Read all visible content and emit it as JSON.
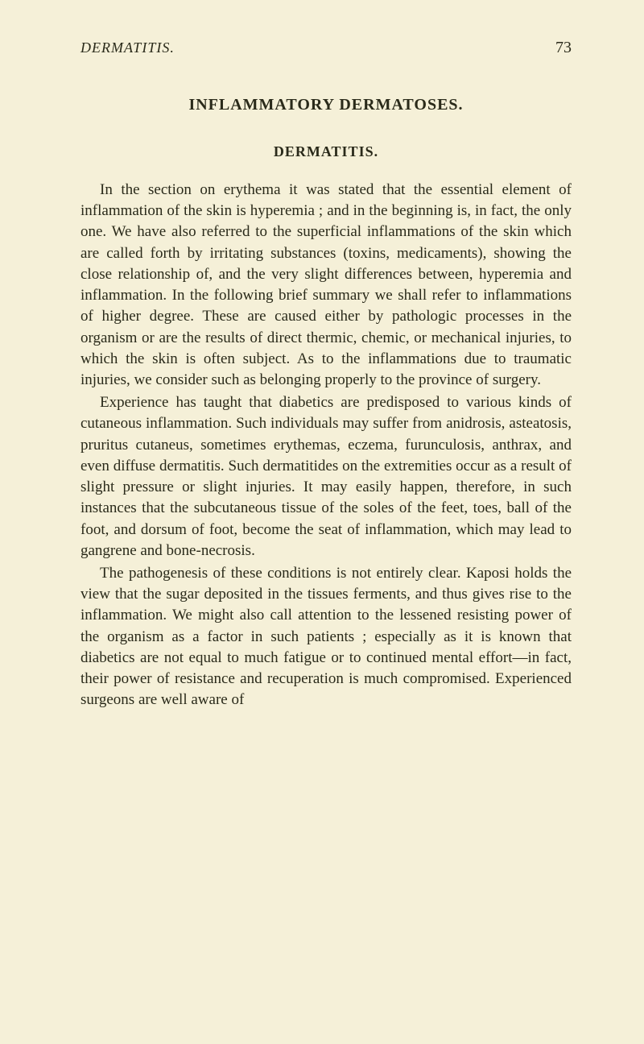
{
  "header": {
    "running_title": "DERMATITIS.",
    "page_number": "73"
  },
  "section": {
    "title": "INFLAMMATORY DERMATOSES.",
    "subtitle": "DERMATITIS."
  },
  "paragraphs": {
    "p1": "In the section on erythema it was stated that the essential element of inflammation of the skin is hyperemia ; and in the beginning is, in fact, the only one. We have also referred to the superficial inflammations of the skin which are called forth by irritating substances (toxins, medicaments), showing the close relationship of, and the very slight differences between, hyperemia and inflammation. In the following brief summary we shall refer to inflammations of higher degree. These are caused either by pathologic processes in the organism or are the results of direct thermic, chemic, or mechanical injuries, to which the skin is often subject. As to the inflammations due to traumatic injuries, we consider such as belonging properly to the province of surgery.",
    "p2": "Experience has taught that diabetics are predisposed to various kinds of cutaneous inflammation. Such individuals may suffer from anidrosis, asteatosis, pruritus cutaneus, sometimes erythemas, eczema, furunculosis, anthrax, and even diffuse dermatitis. Such dermatitides on the extremities occur as a result of slight pressure or slight injuries. It may easily happen, therefore, in such instances that the subcutaneous tissue of the soles of the feet, toes, ball of the foot, and dorsum of foot, become the seat of inflammation, which may lead to gangrene and bone-necrosis.",
    "p3": "The pathogenesis of these conditions is not entirely clear. Kaposi holds the view that the sugar deposited in the tissues ferments, and thus gives rise to the inflammation. We might also call attention to the lessened resisting power of the organism as a factor in such patients ; especially as it is known that diabetics are not equal to much fatigue or to continued mental effort—in fact, their power of resistance and recuperation is much compromised. Experienced surgeons are well aware of"
  }
}
